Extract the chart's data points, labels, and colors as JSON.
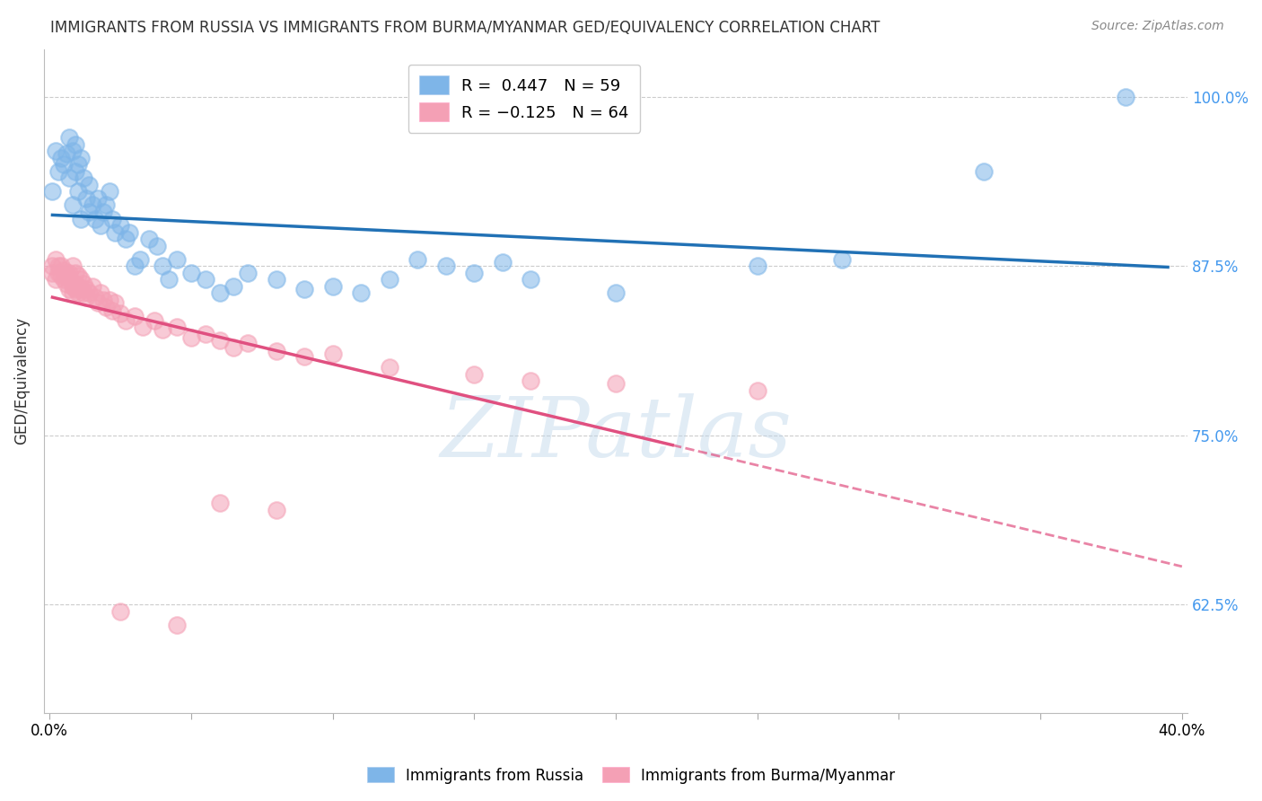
{
  "title": "IMMIGRANTS FROM RUSSIA VS IMMIGRANTS FROM BURMA/MYANMAR GED/EQUIVALENCY CORRELATION CHART",
  "source": "Source: ZipAtlas.com",
  "ylabel": "GED/Equivalency",
  "yticks": [
    "62.5%",
    "75.0%",
    "87.5%",
    "100.0%"
  ],
  "ytick_vals": [
    0.625,
    0.75,
    0.875,
    1.0
  ],
  "xlim": [
    -0.002,
    0.402
  ],
  "ylim": [
    0.545,
    1.035
  ],
  "russia_color": "#7EB5E8",
  "burma_color": "#F4A0B5",
  "russia_line_color": "#2171B5",
  "burma_line_color": "#E05080",
  "watermark": "ZIPatlas",
  "russia_R": 0.447,
  "russia_N": 59,
  "burma_R": -0.125,
  "burma_N": 64,
  "russia_scatter": [
    [
      0.001,
      0.93
    ],
    [
      0.002,
      0.96
    ],
    [
      0.003,
      0.945
    ],
    [
      0.004,
      0.955
    ],
    [
      0.005,
      0.95
    ],
    [
      0.006,
      0.958
    ],
    [
      0.007,
      0.94
    ],
    [
      0.007,
      0.97
    ],
    [
      0.008,
      0.92
    ],
    [
      0.008,
      0.96
    ],
    [
      0.009,
      0.945
    ],
    [
      0.009,
      0.965
    ],
    [
      0.01,
      0.93
    ],
    [
      0.01,
      0.95
    ],
    [
      0.011,
      0.91
    ],
    [
      0.011,
      0.955
    ],
    [
      0.012,
      0.94
    ],
    [
      0.013,
      0.925
    ],
    [
      0.014,
      0.915
    ],
    [
      0.014,
      0.935
    ],
    [
      0.015,
      0.92
    ],
    [
      0.016,
      0.91
    ],
    [
      0.017,
      0.925
    ],
    [
      0.018,
      0.905
    ],
    [
      0.019,
      0.915
    ],
    [
      0.02,
      0.92
    ],
    [
      0.021,
      0.93
    ],
    [
      0.022,
      0.91
    ],
    [
      0.023,
      0.9
    ],
    [
      0.025,
      0.905
    ],
    [
      0.027,
      0.895
    ],
    [
      0.028,
      0.9
    ],
    [
      0.03,
      0.875
    ],
    [
      0.032,
      0.88
    ],
    [
      0.035,
      0.895
    ],
    [
      0.038,
      0.89
    ],
    [
      0.04,
      0.875
    ],
    [
      0.042,
      0.865
    ],
    [
      0.045,
      0.88
    ],
    [
      0.05,
      0.87
    ],
    [
      0.055,
      0.865
    ],
    [
      0.06,
      0.855
    ],
    [
      0.065,
      0.86
    ],
    [
      0.07,
      0.87
    ],
    [
      0.08,
      0.865
    ],
    [
      0.09,
      0.858
    ],
    [
      0.1,
      0.86
    ],
    [
      0.11,
      0.855
    ],
    [
      0.12,
      0.865
    ],
    [
      0.13,
      0.88
    ],
    [
      0.14,
      0.875
    ],
    [
      0.15,
      0.87
    ],
    [
      0.16,
      0.878
    ],
    [
      0.17,
      0.865
    ],
    [
      0.2,
      0.855
    ],
    [
      0.25,
      0.875
    ],
    [
      0.28,
      0.88
    ],
    [
      0.33,
      0.945
    ],
    [
      0.38,
      1.0
    ]
  ],
  "burma_scatter": [
    [
      0.001,
      0.875
    ],
    [
      0.001,
      0.87
    ],
    [
      0.002,
      0.88
    ],
    [
      0.002,
      0.865
    ],
    [
      0.003,
      0.875
    ],
    [
      0.003,
      0.87
    ],
    [
      0.004,
      0.868
    ],
    [
      0.004,
      0.875
    ],
    [
      0.005,
      0.865
    ],
    [
      0.005,
      0.872
    ],
    [
      0.006,
      0.87
    ],
    [
      0.006,
      0.862
    ],
    [
      0.007,
      0.87
    ],
    [
      0.007,
      0.865
    ],
    [
      0.007,
      0.858
    ],
    [
      0.008,
      0.875
    ],
    [
      0.008,
      0.86
    ],
    [
      0.008,
      0.855
    ],
    [
      0.009,
      0.87
    ],
    [
      0.009,
      0.862
    ],
    [
      0.009,
      0.858
    ],
    [
      0.01,
      0.868
    ],
    [
      0.01,
      0.86
    ],
    [
      0.01,
      0.855
    ],
    [
      0.011,
      0.865
    ],
    [
      0.011,
      0.858
    ],
    [
      0.012,
      0.862
    ],
    [
      0.012,
      0.855
    ],
    [
      0.013,
      0.858
    ],
    [
      0.013,
      0.852
    ],
    [
      0.014,
      0.855
    ],
    [
      0.015,
      0.86
    ],
    [
      0.016,
      0.852
    ],
    [
      0.017,
      0.848
    ],
    [
      0.018,
      0.855
    ],
    [
      0.019,
      0.85
    ],
    [
      0.02,
      0.845
    ],
    [
      0.021,
      0.85
    ],
    [
      0.022,
      0.842
    ],
    [
      0.023,
      0.848
    ],
    [
      0.025,
      0.84
    ],
    [
      0.027,
      0.835
    ],
    [
      0.03,
      0.838
    ],
    [
      0.033,
      0.83
    ],
    [
      0.037,
      0.835
    ],
    [
      0.04,
      0.828
    ],
    [
      0.045,
      0.83
    ],
    [
      0.05,
      0.822
    ],
    [
      0.055,
      0.825
    ],
    [
      0.06,
      0.82
    ],
    [
      0.065,
      0.815
    ],
    [
      0.07,
      0.818
    ],
    [
      0.08,
      0.812
    ],
    [
      0.09,
      0.808
    ],
    [
      0.1,
      0.81
    ],
    [
      0.12,
      0.8
    ],
    [
      0.15,
      0.795
    ],
    [
      0.17,
      0.79
    ],
    [
      0.2,
      0.788
    ],
    [
      0.25,
      0.783
    ],
    [
      0.06,
      0.7
    ],
    [
      0.08,
      0.695
    ],
    [
      0.025,
      0.62
    ],
    [
      0.045,
      0.61
    ]
  ]
}
